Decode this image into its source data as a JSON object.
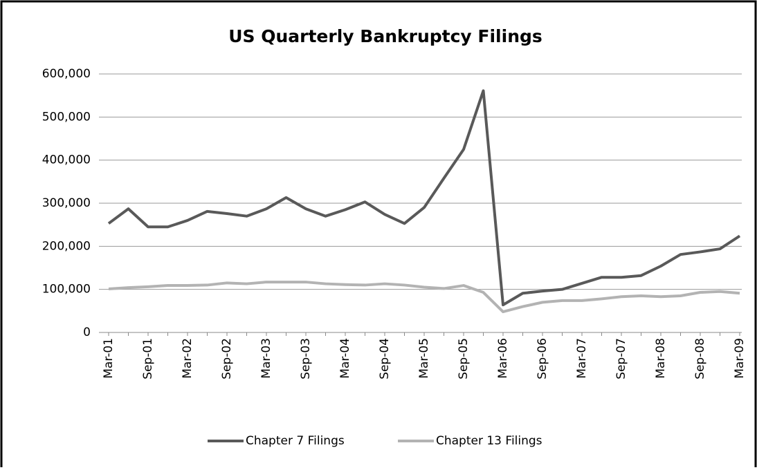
{
  "chart_data": {
    "type": "line",
    "title": "US Quarterly Bankruptcy Filings",
    "categories": [
      "Mar-01",
      null,
      "Sep-01",
      null,
      "Mar-02",
      null,
      "Sep-02",
      null,
      "Mar-03",
      null,
      "Sep-03",
      null,
      "Mar-04",
      null,
      "Sep-04",
      null,
      "Mar-05",
      null,
      "Sep-05",
      null,
      "Mar-06",
      null,
      "Sep-06",
      null,
      "Mar-07",
      null,
      "Sep-07",
      null,
      "Mar-08",
      null,
      "Sep-08",
      null,
      "Mar-09"
    ],
    "series": [
      {
        "name": "Chapter 7 Filings",
        "color": "#595959",
        "values": [
          253000,
          287000,
          245000,
          245000,
          260000,
          281000,
          276000,
          270000,
          287000,
          313000,
          287000,
          270000,
          285000,
          303000,
          274000,
          253000,
          290000,
          358000,
          425000,
          561000,
          64000,
          91000,
          96000,
          100000,
          114000,
          128000,
          128000,
          132000,
          154000,
          181000,
          187000,
          194000,
          224000
        ]
      },
      {
        "name": "Chapter 13 Filings",
        "color": "#b3b3b3",
        "values": [
          101000,
          104000,
          106000,
          109000,
          109000,
          110000,
          115000,
          113000,
          117000,
          117000,
          117000,
          113000,
          111000,
          110000,
          113000,
          110000,
          105000,
          102000,
          109000,
          93000,
          48000,
          60000,
          70000,
          74000,
          74000,
          78000,
          83000,
          85000,
          83000,
          85000,
          93000,
          95000,
          91000
        ]
      }
    ],
    "ylim": [
      0,
      600000
    ],
    "yticks": [
      0,
      {
        "value": 100000,
        "label": "100,000"
      },
      {
        "value": 200000,
        "label": "200,000"
      },
      {
        "value": 300000,
        "label": "300,000"
      },
      {
        "value": 400000,
        "label": "400,000"
      },
      {
        "value": 500000,
        "label": "500,000"
      },
      {
        "value": 600000,
        "label": "600,000"
      }
    ],
    "grid": true,
    "legend": "bottom"
  }
}
